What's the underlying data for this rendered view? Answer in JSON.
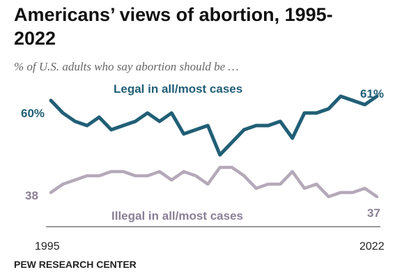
{
  "header": {
    "title": "Americans’ views of abortion, 1995-2022",
    "subtitle": "% of U.S. adults who say abortion should be …"
  },
  "footer": {
    "source": "PEW RESEARCH CENTER"
  },
  "colors": {
    "legal": "#215F76",
    "illegal": "#B4A9B9",
    "illegal_text": "#8A7F96",
    "axis": "#999999"
  },
  "chart_data": {
    "type": "line",
    "title": "Americans’ views of abortion, 1995-2022",
    "subtitle": "% of U.S. adults who say abortion should be …",
    "x_tick_labels": [
      "1995",
      "2022"
    ],
    "x": [
      1995,
      1996,
      1997,
      1998,
      1999,
      2000,
      2001,
      2002,
      2003,
      2004,
      2005,
      2006,
      2007,
      2008,
      2009,
      2010,
      2011,
      2012,
      2013,
      2014,
      2015,
      2016,
      2017,
      2018,
      2019,
      2020,
      2021,
      2022
    ],
    "xlim": [
      1995,
      2022
    ],
    "ylim": [
      30,
      66
    ],
    "grid": false,
    "series": [
      {
        "name": "Legal in all/most cases",
        "color": "#215F76",
        "values": [
          60,
          57,
          55,
          54,
          56,
          53,
          54,
          55,
          57,
          55,
          57,
          52,
          53,
          54,
          47,
          50,
          53,
          54,
          54,
          55,
          51,
          57,
          57,
          58,
          61,
          60,
          59,
          61
        ],
        "start_label": "60%",
        "end_label": "61%"
      },
      {
        "name": "Illegal in all/most cases",
        "color": "#B4A9B9",
        "values": [
          38,
          40,
          41,
          42,
          42,
          43,
          43,
          42,
          42,
          43,
          41,
          43,
          42,
          40,
          44,
          44,
          42,
          39,
          40,
          40,
          43,
          39,
          40,
          37,
          38,
          38,
          39,
          37
        ],
        "start_label": "38",
        "end_label": "37"
      }
    ]
  }
}
